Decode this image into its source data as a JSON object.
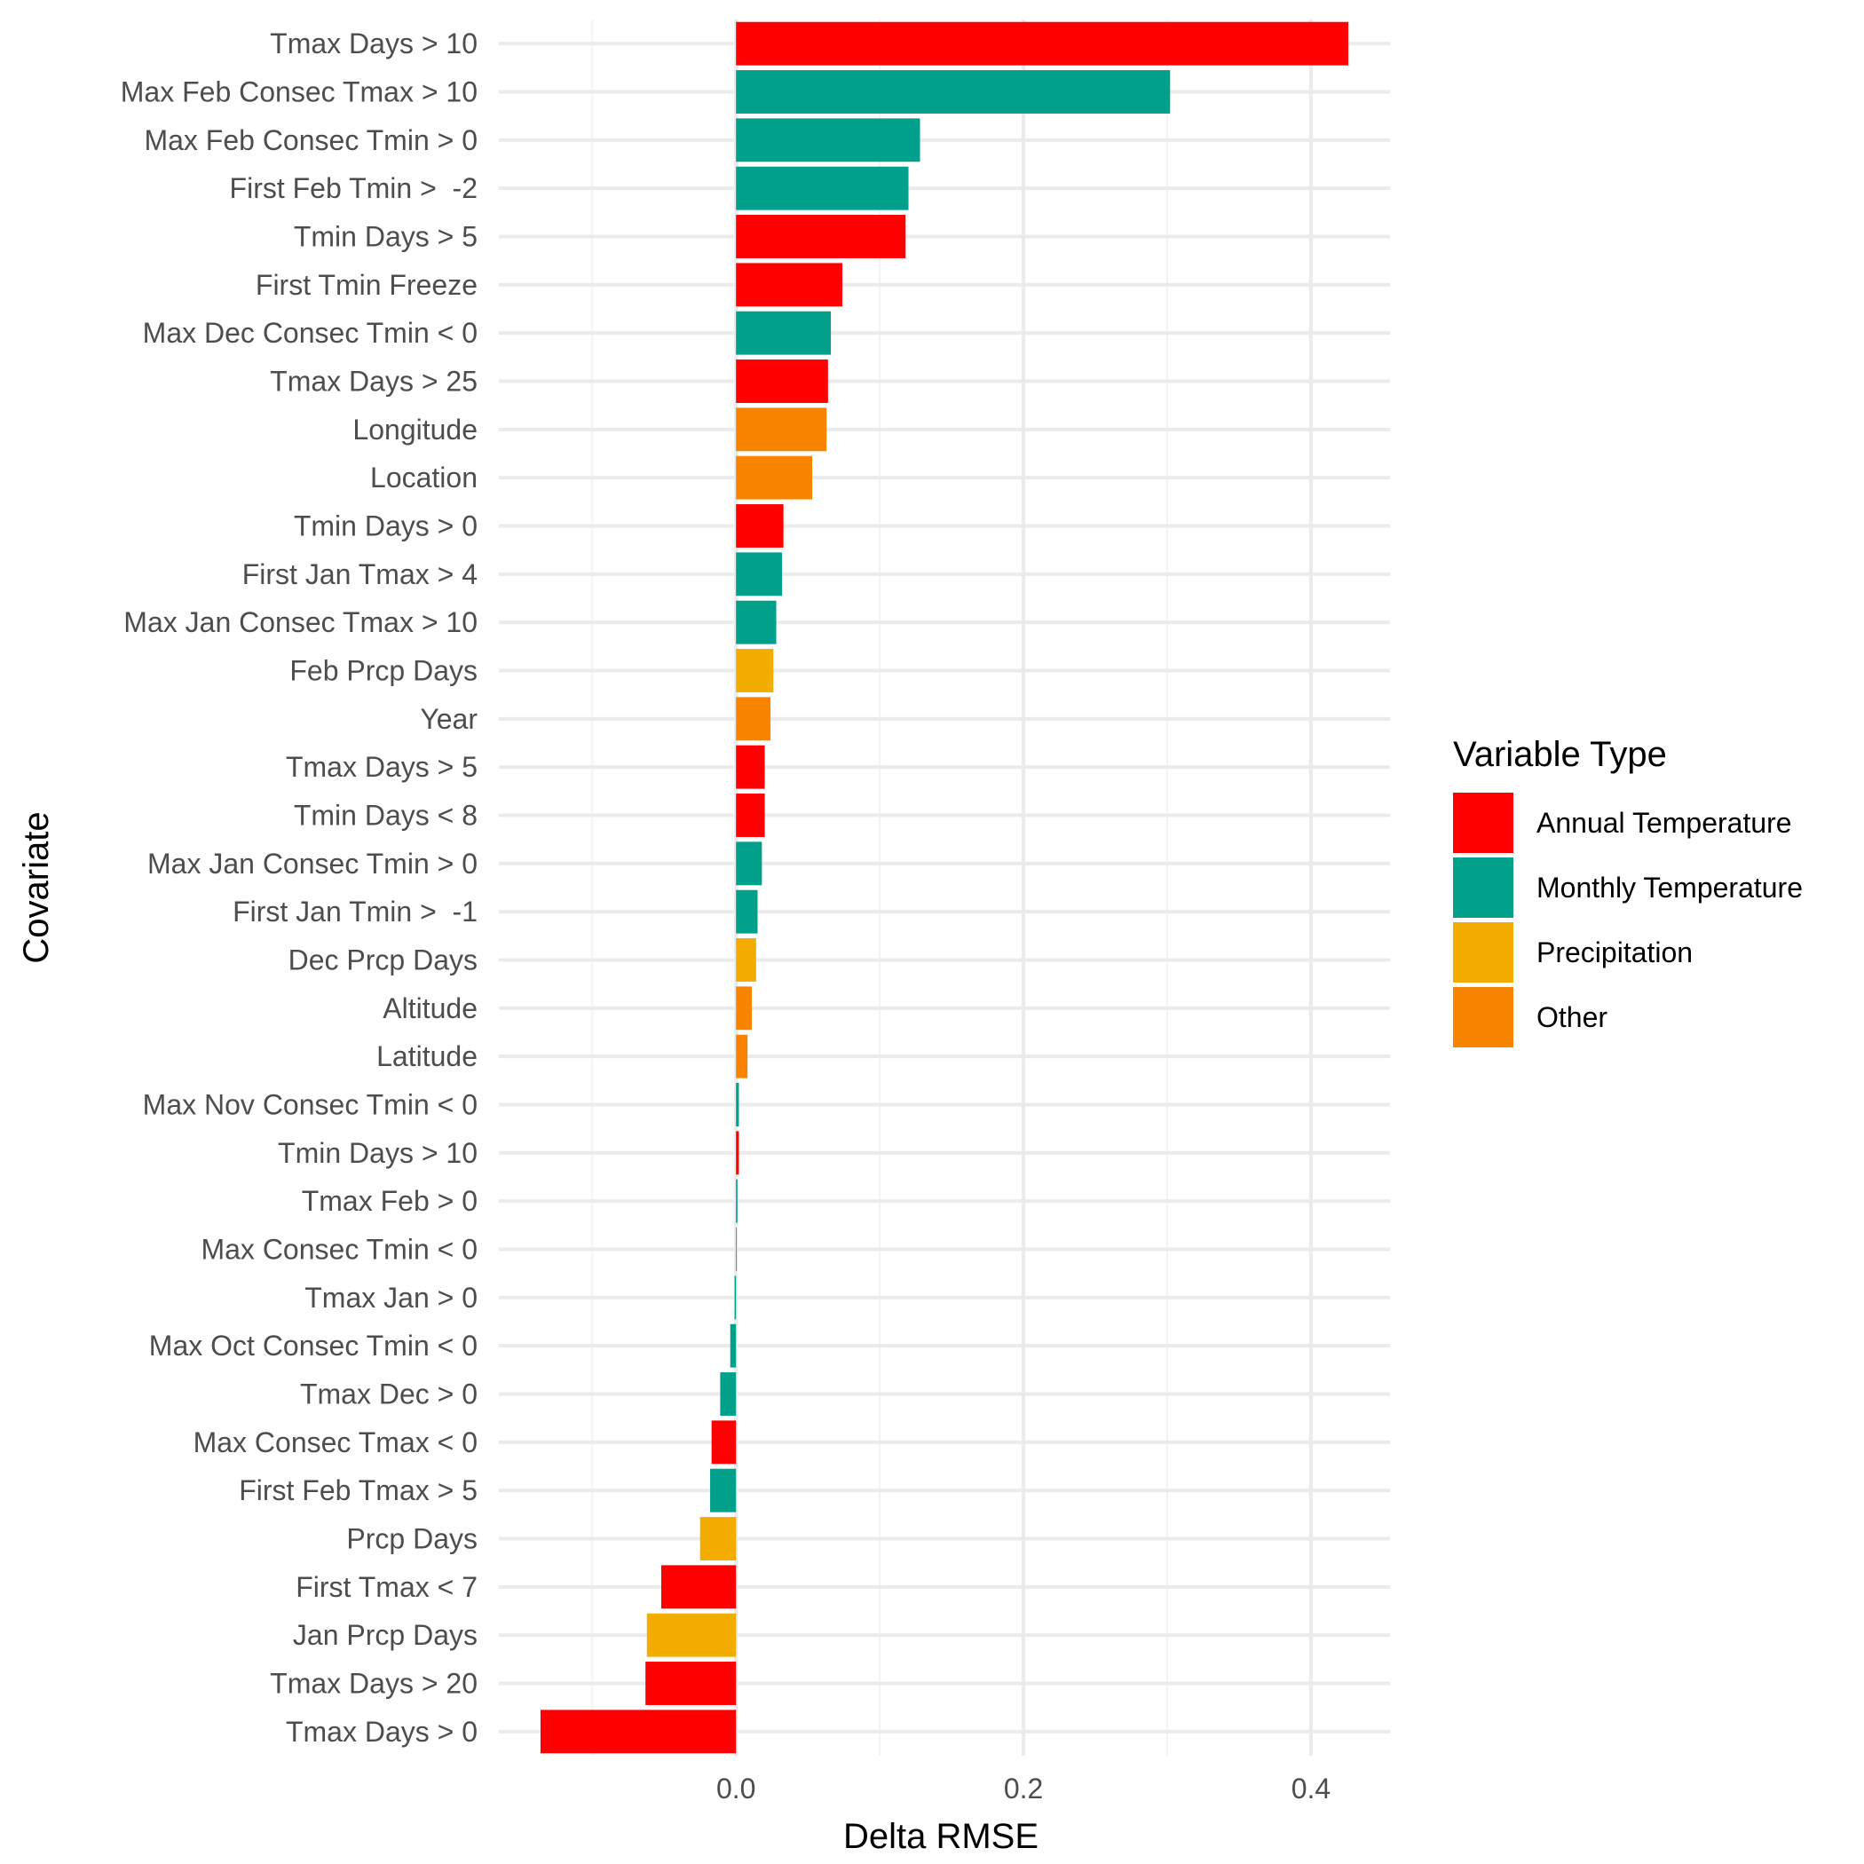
{
  "chart_data": {
    "type": "bar",
    "orientation": "horizontal",
    "xlabel": "Delta RMSE",
    "ylabel": "Covariate",
    "xlim": [
      -0.165,
      0.455
    ],
    "xticks": [
      0.0,
      0.2,
      0.4
    ],
    "xtick_labels": [
      "0.0",
      "0.2",
      "0.4"
    ],
    "grid": true,
    "legend": {
      "title": "Variable Type",
      "placement": "right",
      "entries": [
        {
          "name": "Annual Temperature",
          "color": "#FF0000"
        },
        {
          "name": "Monthly Temperature",
          "color": "#00A08A"
        },
        {
          "name": "Precipitation",
          "color": "#F2AD00"
        },
        {
          "name": "Other",
          "color": "#F98400"
        }
      ]
    },
    "bars": [
      {
        "label": "Tmax Days > 10",
        "value": 0.426,
        "group": "Annual Temperature"
      },
      {
        "label": "Max Feb Consec Tmax > 10",
        "value": 0.302,
        "group": "Monthly Temperature"
      },
      {
        "label": "Max Feb Consec Tmin > 0",
        "value": 0.128,
        "group": "Monthly Temperature"
      },
      {
        "label": "First Feb Tmin >  -2",
        "value": 0.12,
        "group": "Monthly Temperature"
      },
      {
        "label": "Tmin Days > 5",
        "value": 0.118,
        "group": "Annual Temperature"
      },
      {
        "label": "First Tmin Freeze",
        "value": 0.074,
        "group": "Annual Temperature"
      },
      {
        "label": "Max Dec Consec Tmin < 0",
        "value": 0.066,
        "group": "Monthly Temperature"
      },
      {
        "label": "Tmax Days > 25",
        "value": 0.064,
        "group": "Annual Temperature"
      },
      {
        "label": "Longitude",
        "value": 0.063,
        "group": "Other"
      },
      {
        "label": "Location",
        "value": 0.053,
        "group": "Other"
      },
      {
        "label": "Tmin Days > 0",
        "value": 0.033,
        "group": "Annual Temperature"
      },
      {
        "label": "First Jan Tmax > 4",
        "value": 0.032,
        "group": "Monthly Temperature"
      },
      {
        "label": "Max Jan Consec Tmax > 10",
        "value": 0.028,
        "group": "Monthly Temperature"
      },
      {
        "label": "Feb Prcp Days",
        "value": 0.026,
        "group": "Precipitation"
      },
      {
        "label": "Year",
        "value": 0.024,
        "group": "Other"
      },
      {
        "label": "Tmax Days > 5",
        "value": 0.02,
        "group": "Annual Temperature"
      },
      {
        "label": "Tmin Days < 8",
        "value": 0.02,
        "group": "Annual Temperature"
      },
      {
        "label": "Max Jan Consec Tmin > 0",
        "value": 0.018,
        "group": "Monthly Temperature"
      },
      {
        "label": "First Jan Tmin >  -1",
        "value": 0.015,
        "group": "Monthly Temperature"
      },
      {
        "label": "Dec Prcp Days",
        "value": 0.014,
        "group": "Precipitation"
      },
      {
        "label": "Altitude",
        "value": 0.011,
        "group": "Other"
      },
      {
        "label": "Latitude",
        "value": 0.008,
        "group": "Other"
      },
      {
        "label": "Max Nov Consec Tmin < 0",
        "value": 0.002,
        "group": "Monthly Temperature"
      },
      {
        "label": "Tmin Days > 10",
        "value": 0.002,
        "group": "Annual Temperature"
      },
      {
        "label": "Tmax Feb > 0",
        "value": 0.001,
        "group": "Monthly Temperature"
      },
      {
        "label": "Max Consec Tmin < 0",
        "value": 0.0005,
        "group": "Monthly Temperature"
      },
      {
        "label": "Tmax Jan > 0",
        "value": -0.001,
        "group": "Monthly Temperature"
      },
      {
        "label": "Max Oct Consec Tmin < 0",
        "value": -0.004,
        "group": "Monthly Temperature"
      },
      {
        "label": "Tmax Dec > 0",
        "value": -0.011,
        "group": "Monthly Temperature"
      },
      {
        "label": "Max Consec Tmax < 0",
        "value": -0.017,
        "group": "Annual Temperature"
      },
      {
        "label": "First Feb Tmax > 5",
        "value": -0.018,
        "group": "Monthly Temperature"
      },
      {
        "label": "Prcp Days",
        "value": -0.025,
        "group": "Precipitation"
      },
      {
        "label": "First Tmax < 7",
        "value": -0.052,
        "group": "Annual Temperature"
      },
      {
        "label": "Jan Prcp Days",
        "value": -0.062,
        "group": "Precipitation"
      },
      {
        "label": "Tmax Days > 20",
        "value": -0.063,
        "group": "Annual Temperature"
      },
      {
        "label": "Tmax Days > 0",
        "value": -0.136,
        "group": "Annual Temperature"
      }
    ]
  }
}
